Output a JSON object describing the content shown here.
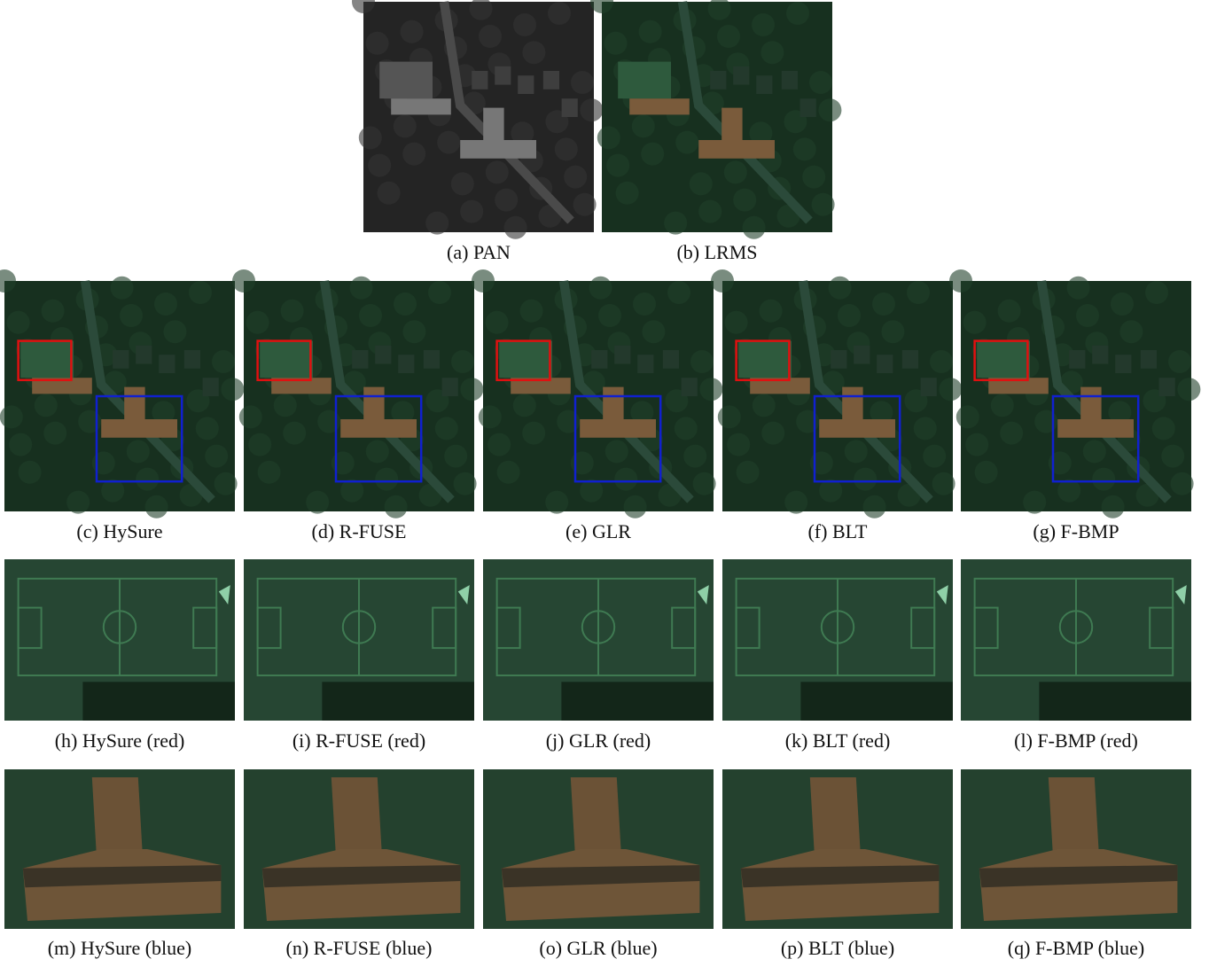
{
  "figure": {
    "rows": [
      [
        "(a) PAN",
        "(b) LRMS"
      ],
      [
        "(c) HySure",
        "(d) R-FUSE",
        "(e) GLR",
        "(f) BLT",
        "(g) F-BMP"
      ],
      [
        "(h) HySure (red)",
        "(i) R-FUSE (red)",
        "(j) GLR (red)",
        "(k) BLT (red)",
        "(l) F-BMP (red)"
      ],
      [
        "(m) HySure (blue)",
        "(n) R-FUSE (blue)",
        "(o) GLR (blue)",
        "(p) BLT (blue)",
        "(q) F-BMP (blue)"
      ]
    ]
  }
}
